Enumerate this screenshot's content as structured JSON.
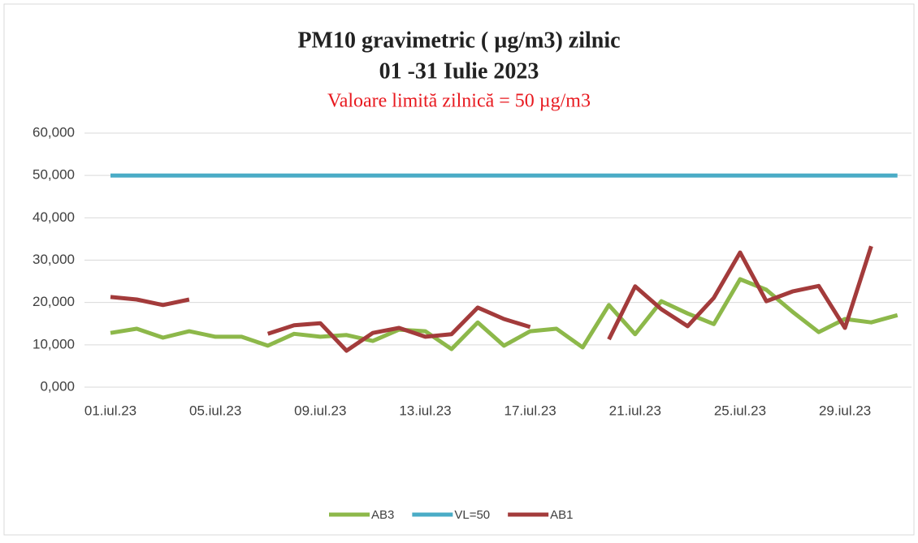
{
  "chart_data": {
    "type": "line",
    "title": "PM10 gravimetric ( µg/m3) zilnic",
    "subtitle": "01 -31 Iulie  2023",
    "annotation": "Valoare limită zilnică = 50 µg/m3",
    "categories": [
      "01.iul.23",
      null,
      null,
      null,
      "05.iul.23",
      null,
      null,
      null,
      "09.iul.23",
      null,
      null,
      null,
      "13.iul.23",
      null,
      null,
      null,
      "17.iul.23",
      null,
      null,
      null,
      "21.iul.23",
      null,
      null,
      null,
      "25.iul.23",
      null,
      null,
      null,
      "29.iul.23",
      null,
      null
    ],
    "series": [
      {
        "name": "AB3",
        "color": "#8db84a",
        "values": [
          12.8,
          13.8,
          11.7,
          13.2,
          11.9,
          11.9,
          9.8,
          12.6,
          11.9,
          12.3,
          10.9,
          13.6,
          13.2,
          9.0,
          15.3,
          9.8,
          13.2,
          13.8,
          9.4,
          19.4,
          12.5,
          20.3,
          17.4,
          14.9,
          25.5,
          23.0,
          17.8,
          13.0,
          16.1,
          15.3,
          17.0
        ]
      },
      {
        "name": "VL=50",
        "color": "#4aacc6",
        "values": [
          50,
          50,
          50,
          50,
          50,
          50,
          50,
          50,
          50,
          50,
          50,
          50,
          50,
          50,
          50,
          50,
          50,
          50,
          50,
          50,
          50,
          50,
          50,
          50,
          50,
          50,
          50,
          50,
          50,
          50,
          50
        ]
      },
      {
        "name": "AB1",
        "color": "#a33b3b",
        "values": [
          21.3,
          20.7,
          19.4,
          20.7,
          null,
          null,
          12.6,
          14.6,
          15.1,
          8.6,
          12.8,
          14.0,
          11.9,
          12.5,
          18.8,
          16.1,
          14.2,
          null,
          null,
          11.3,
          23.8,
          18.4,
          14.4,
          21.1,
          31.8,
          20.3,
          22.6,
          23.9,
          14.0,
          33.3,
          null
        ]
      }
    ],
    "ylim": [
      0,
      60
    ],
    "yticks": [
      {
        "value": 0,
        "label": "0,000"
      },
      {
        "value": 10,
        "label": "10,000"
      },
      {
        "value": 20,
        "label": "20,000"
      },
      {
        "value": 30,
        "label": "30,000"
      },
      {
        "value": 40,
        "label": "40,000"
      },
      {
        "value": 50,
        "label": "50,000"
      },
      {
        "value": 60,
        "label": "60,000"
      }
    ],
    "grid": true
  }
}
